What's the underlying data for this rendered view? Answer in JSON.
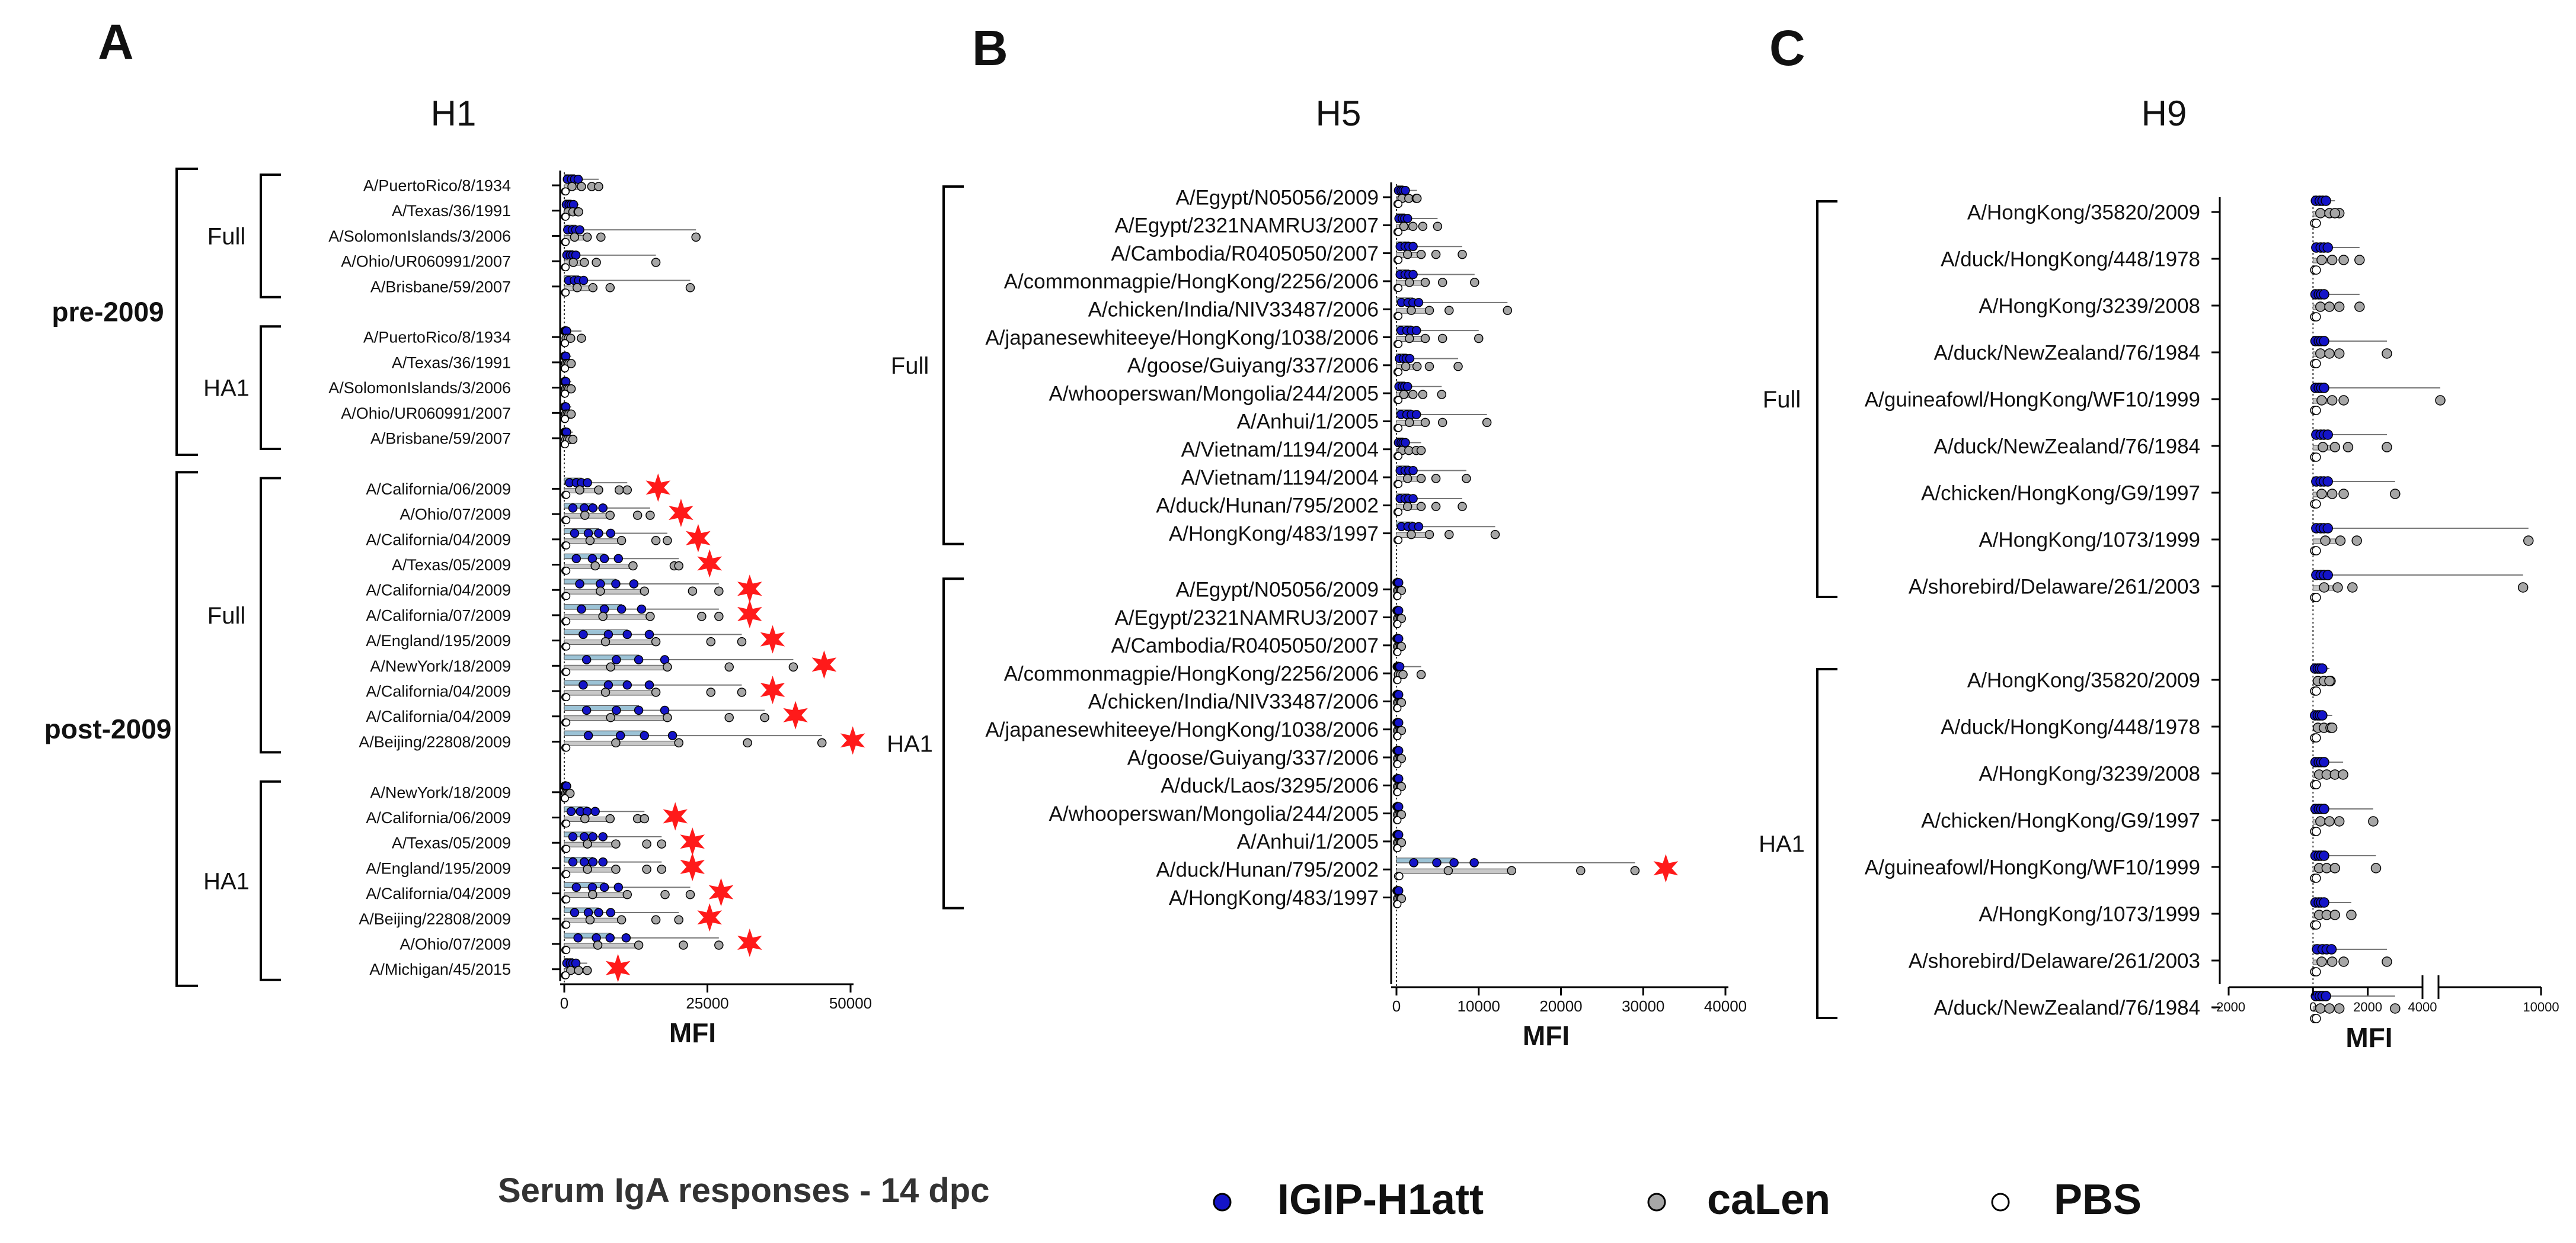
{
  "figure": {
    "legend": {
      "caption": "Serum IgA responses - 14 dpc",
      "entries": [
        {
          "label": "IGIP-H1att",
          "color": "#1414c8",
          "marker": "filled-dot"
        },
        {
          "label": "caLen",
          "color": "#a6a6a6",
          "marker": "grey-dot"
        },
        {
          "label": "PBS",
          "color": "#ffffff",
          "marker": "open-dot"
        }
      ]
    }
  },
  "chart_data": [
    {
      "panel": "A",
      "type": "bar",
      "orientation": "horizontal",
      "title": "H1",
      "xlabel": "MFI",
      "xlim": [
        -5000,
        50000
      ],
      "xticks": [
        0,
        25000,
        50000
      ],
      "xtick_labels": [
        "0",
        "25000",
        "50000"
      ],
      "super_groups": [
        {
          "label": "pre-2009",
          "group_labels": [
            "Full",
            "HA1"
          ]
        },
        {
          "label": "post-2009",
          "group_labels": [
            "Full",
            "HA1"
          ]
        }
      ],
      "groups": [
        {
          "label": "Full",
          "super": "pre-2009",
          "rows": [
            {
              "name": "A/PuertoRico/8/1934",
              "igip": 1800,
              "calen": 3000,
              "pbs": 200,
              "max": 6000,
              "sig": false
            },
            {
              "name": "A/Texas/36/1991",
              "igip": 1200,
              "calen": 1500,
              "pbs": 200,
              "max": 2500,
              "sig": false
            },
            {
              "name": "A/SolomonIslands/3/2006",
              "igip": 2000,
              "calen": 4000,
              "pbs": 200,
              "max": 23000,
              "sig": false
            },
            {
              "name": "A/Ohio/UR060991/2007",
              "igip": 1500,
              "calen": 3500,
              "pbs": 200,
              "max": 16000,
              "sig": false
            },
            {
              "name": "A/Brisbane/59/2007",
              "igip": 2500,
              "calen": 5000,
              "pbs": 200,
              "max": 22000,
              "sig": false
            }
          ]
        },
        {
          "label": "HA1",
          "super": "pre-2009",
          "rows": [
            {
              "name": "A/PuertoRico/8/1934",
              "igip": 300,
              "calen": 700,
              "pbs": 100,
              "max": 3000,
              "sig": false
            },
            {
              "name": "A/Texas/36/1991",
              "igip": 200,
              "calen": 500,
              "pbs": 100,
              "max": 1200,
              "sig": false
            },
            {
              "name": "A/SolomonIslands/3/2006",
              "igip": 200,
              "calen": 500,
              "pbs": 100,
              "max": 1200,
              "sig": false
            },
            {
              "name": "A/Ohio/UR060991/2007",
              "igip": 200,
              "calen": 500,
              "pbs": 100,
              "max": 1200,
              "sig": false
            },
            {
              "name": "A/Brisbane/59/2007",
              "igip": 300,
              "calen": 600,
              "pbs": 100,
              "max": 1500,
              "sig": false
            }
          ]
        },
        {
          "label": "Full",
          "super": "post-2009",
          "rows": [
            {
              "name": "A/California/06/2009",
              "igip": 3000,
              "calen": 6000,
              "pbs": 300,
              "max": 11000,
              "sig": true
            },
            {
              "name": "A/Ohio/07/2009",
              "igip": 5000,
              "calen": 8000,
              "pbs": 300,
              "max": 15000,
              "sig": true
            },
            {
              "name": "A/California/04/2009",
              "igip": 6000,
              "calen": 10000,
              "pbs": 300,
              "max": 18000,
              "sig": true
            },
            {
              "name": "A/Texas/05/2009",
              "igip": 7000,
              "calen": 12000,
              "pbs": 300,
              "max": 20000,
              "sig": true
            },
            {
              "name": "A/California/04/2009",
              "igip": 9000,
              "calen": 14000,
              "pbs": 300,
              "max": 27000,
              "sig": true
            },
            {
              "name": "A/California/07/2009",
              "igip": 10000,
              "calen": 15000,
              "pbs": 300,
              "max": 27000,
              "sig": true
            },
            {
              "name": "A/England/195/2009",
              "igip": 11000,
              "calen": 16000,
              "pbs": 300,
              "max": 31000,
              "sig": true
            },
            {
              "name": "A/NewYork/18/2009",
              "igip": 13000,
              "calen": 18000,
              "pbs": 300,
              "max": 40000,
              "sig": true
            },
            {
              "name": "A/California/04/2009",
              "igip": 11000,
              "calen": 16000,
              "pbs": 300,
              "max": 31000,
              "sig": true
            },
            {
              "name": "A/California/04/2009",
              "igip": 13000,
              "calen": 18000,
              "pbs": 300,
              "max": 35000,
              "sig": true
            },
            {
              "name": "A/Beijing/22808/2009",
              "igip": 14000,
              "calen": 20000,
              "pbs": 300,
              "max": 45000,
              "sig": true
            }
          ]
        },
        {
          "label": "HA1",
          "super": "post-2009",
          "rows": [
            {
              "name": "A/NewYork/18/2009",
              "igip": 300,
              "calen": 500,
              "pbs": 100,
              "max": 1000,
              "sig": false
            },
            {
              "name": "A/California/06/2009",
              "igip": 4000,
              "calen": 8000,
              "pbs": 300,
              "max": 14000,
              "sig": true
            },
            {
              "name": "A/Texas/05/2009",
              "igip": 5000,
              "calen": 9000,
              "pbs": 300,
              "max": 17000,
              "sig": true
            },
            {
              "name": "A/England/195/2009",
              "igip": 5000,
              "calen": 9000,
              "pbs": 300,
              "max": 17000,
              "sig": true
            },
            {
              "name": "A/California/04/2009",
              "igip": 7000,
              "calen": 11000,
              "pbs": 300,
              "max": 22000,
              "sig": true
            },
            {
              "name": "A/Beijing/22808/2009",
              "igip": 6000,
              "calen": 10000,
              "pbs": 300,
              "max": 20000,
              "sig": true
            },
            {
              "name": "A/Ohio/07/2009",
              "igip": 8000,
              "calen": 13000,
              "pbs": 300,
              "max": 27000,
              "sig": true
            },
            {
              "name": "A/Michigan/45/2015",
              "igip": 1500,
              "calen": 2500,
              "pbs": 200,
              "max": 4000,
              "sig": true
            }
          ]
        }
      ]
    },
    {
      "panel": "B",
      "type": "bar",
      "orientation": "horizontal",
      "title": "H5",
      "xlabel": "MFI",
      "xlim": [
        -2000,
        40000
      ],
      "xticks": [
        0,
        10000,
        20000,
        30000,
        40000
      ],
      "xtick_labels": [
        "0",
        "10000",
        "20000",
        "30000",
        "40000"
      ],
      "groups": [
        {
          "label": "Full",
          "rows": [
            {
              "name": "A/Egypt/N05056/2009",
              "igip": 800,
              "calen": 1500,
              "pbs": 200,
              "max": 2500,
              "sig": false
            },
            {
              "name": "A/Egypt/2321NAMRU3/2007",
              "igip": 1000,
              "calen": 2000,
              "pbs": 200,
              "max": 5000,
              "sig": false
            },
            {
              "name": "A/Cambodia/R0405050/2007",
              "igip": 1500,
              "calen": 3000,
              "pbs": 200,
              "max": 8000,
              "sig": false
            },
            {
              "name": "A/commonmagpie/HongKong/2256/2006",
              "igip": 1500,
              "calen": 3500,
              "pbs": 200,
              "max": 9500,
              "sig": false
            },
            {
              "name": "A/chicken/India/NIV33487/2006",
              "igip": 2000,
              "calen": 4000,
              "pbs": 200,
              "max": 13500,
              "sig": false
            },
            {
              "name": "A/japanesewhiteeye/HongKong/1038/2006",
              "igip": 1800,
              "calen": 3500,
              "pbs": 200,
              "max": 10000,
              "sig": false
            },
            {
              "name": "A/goose/Guiyang/337/2006",
              "igip": 1200,
              "calen": 2500,
              "pbs": 200,
              "max": 7500,
              "sig": false
            },
            {
              "name": "A/whooperswan/Mongolia/244/2005",
              "igip": 1000,
              "calen": 2000,
              "pbs": 200,
              "max": 5500,
              "sig": false
            },
            {
              "name": "A/Anhui/1/2005",
              "igip": 1800,
              "calen": 3500,
              "pbs": 200,
              "max": 11000,
              "sig": false
            },
            {
              "name": "A/Vietnam/1194/2004",
              "igip": 800,
              "calen": 1500,
              "pbs": 200,
              "max": 3000,
              "sig": false
            },
            {
              "name": "A/Vietnam/1194/2004",
              "igip": 1500,
              "calen": 3000,
              "pbs": 200,
              "max": 8500,
              "sig": false
            },
            {
              "name": "A/duck/Hunan/795/2002",
              "igip": 1500,
              "calen": 3000,
              "pbs": 200,
              "max": 8000,
              "sig": false
            },
            {
              "name": "A/HongKong/483/1997",
              "igip": 2000,
              "calen": 4000,
              "pbs": 200,
              "max": 12000,
              "sig": false
            }
          ]
        },
        {
          "label": "HA1",
          "rows": [
            {
              "name": "A/Egypt/N05056/2009",
              "igip": 200,
              "calen": 300,
              "pbs": 100,
              "max": 600,
              "sig": false
            },
            {
              "name": "A/Egypt/2321NAMRU3/2007",
              "igip": 200,
              "calen": 300,
              "pbs": 100,
              "max": 600,
              "sig": false
            },
            {
              "name": "A/Cambodia/R0405050/2007",
              "igip": 200,
              "calen": 300,
              "pbs": 100,
              "max": 600,
              "sig": false
            },
            {
              "name": "A/commonmagpie/HongKong/2256/2006",
              "igip": 300,
              "calen": 500,
              "pbs": 100,
              "max": 3000,
              "sig": false
            },
            {
              "name": "A/chicken/India/NIV33487/2006",
              "igip": 200,
              "calen": 300,
              "pbs": 100,
              "max": 600,
              "sig": false
            },
            {
              "name": "A/japanesewhiteeye/HongKong/1038/2006",
              "igip": 200,
              "calen": 300,
              "pbs": 100,
              "max": 600,
              "sig": false
            },
            {
              "name": "A/goose/Guiyang/337/2006",
              "igip": 200,
              "calen": 300,
              "pbs": 100,
              "max": 600,
              "sig": false
            },
            {
              "name": "A/duck/Laos/3295/2006",
              "igip": 200,
              "calen": 300,
              "pbs": 100,
              "max": 600,
              "sig": false
            },
            {
              "name": "A/whooperswan/Mongolia/244/2005",
              "igip": 200,
              "calen": 300,
              "pbs": 100,
              "max": 600,
              "sig": false
            },
            {
              "name": "A/Anhui/1/2005",
              "igip": 200,
              "calen": 300,
              "pbs": 100,
              "max": 600,
              "sig": false
            },
            {
              "name": "A/duck/Hunan/795/2002",
              "igip": 7000,
              "calen": 14000,
              "pbs": 300,
              "max": 29000,
              "sig": true
            },
            {
              "name": "A/HongKong/483/1997",
              "igip": 200,
              "calen": 300,
              "pbs": 100,
              "max": 600,
              "sig": false
            }
          ]
        }
      ]
    },
    {
      "panel": "C",
      "type": "bar",
      "orientation": "horizontal",
      "title": "H9",
      "xlabel": "MFI",
      "xlim": [
        -2000,
        10000
      ],
      "x_axis_break": [
        4000,
        4300
      ],
      "xticks": [
        -2000,
        0,
        2000,
        4000,
        10000
      ],
      "xtick_labels": [
        "-2000",
        "0",
        "2000",
        "4000",
        "10000"
      ],
      "groups": [
        {
          "label": "Full",
          "rows": [
            {
              "name": "A/HongKong/35820/2009",
              "igip": 350,
              "calen": 600,
              "pbs": 100,
              "max": 800,
              "sig": false
            },
            {
              "name": "A/duck/HongKong/448/1978",
              "igip": 400,
              "calen": 700,
              "pbs": 100,
              "max": 1700,
              "sig": false
            },
            {
              "name": "A/HongKong/3239/2008",
              "igip": 300,
              "calen": 600,
              "pbs": 100,
              "max": 1700,
              "sig": false
            },
            {
              "name": "A/duck/NewZealand/76/1984",
              "igip": 300,
              "calen": 600,
              "pbs": 100,
              "max": 2700,
              "sig": false
            },
            {
              "name": "A/guineafowl/HongKong/WF10/1999",
              "igip": 300,
              "calen": 700,
              "pbs": 100,
              "max": 4400,
              "sig": false
            },
            {
              "name": "A/duck/NewZealand/76/1984",
              "igip": 400,
              "calen": 800,
              "pbs": 100,
              "max": 2700,
              "sig": false
            },
            {
              "name": "A/chicken/HongKong/G9/1997",
              "igip": 400,
              "calen": 700,
              "pbs": 100,
              "max": 3000,
              "sig": false
            },
            {
              "name": "A/HongKong/1073/1999",
              "igip": 400,
              "calen": 1000,
              "pbs": 100,
              "max": 9300,
              "sig": false
            },
            {
              "name": "A/shorebird/Delaware/261/2003",
              "igip": 400,
              "calen": 900,
              "pbs": 100,
              "max": 9000,
              "sig": false
            }
          ]
        },
        {
          "label": "HA1",
          "rows": [
            {
              "name": "A/HongKong/35820/2009",
              "igip": 250,
              "calen": 400,
              "pbs": 100,
              "max": 600,
              "sig": false
            },
            {
              "name": "A/duck/HongKong/448/1978",
              "igip": 250,
              "calen": 400,
              "pbs": 100,
              "max": 700,
              "sig": false
            },
            {
              "name": "A/HongKong/3239/2008",
              "igip": 300,
              "calen": 500,
              "pbs": 100,
              "max": 1100,
              "sig": false
            },
            {
              "name": "A/chicken/HongKong/G9/1997",
              "igip": 300,
              "calen": 600,
              "pbs": 100,
              "max": 2200,
              "sig": false
            },
            {
              "name": "A/guineafowl/HongKong/WF10/1999",
              "igip": 300,
              "calen": 500,
              "pbs": 100,
              "max": 2300,
              "sig": false
            },
            {
              "name": "A/HongKong/1073/1999",
              "igip": 300,
              "calen": 500,
              "pbs": 100,
              "max": 1400,
              "sig": false
            },
            {
              "name": "A/shorebird/Delaware/261/2003",
              "igip": 500,
              "calen": 700,
              "pbs": 100,
              "max": 2700,
              "sig": false
            },
            {
              "name": "A/duck/NewZealand/76/1984",
              "igip": 350,
              "calen": 600,
              "pbs": 100,
              "max": 3000,
              "sig": false
            }
          ]
        }
      ]
    }
  ]
}
